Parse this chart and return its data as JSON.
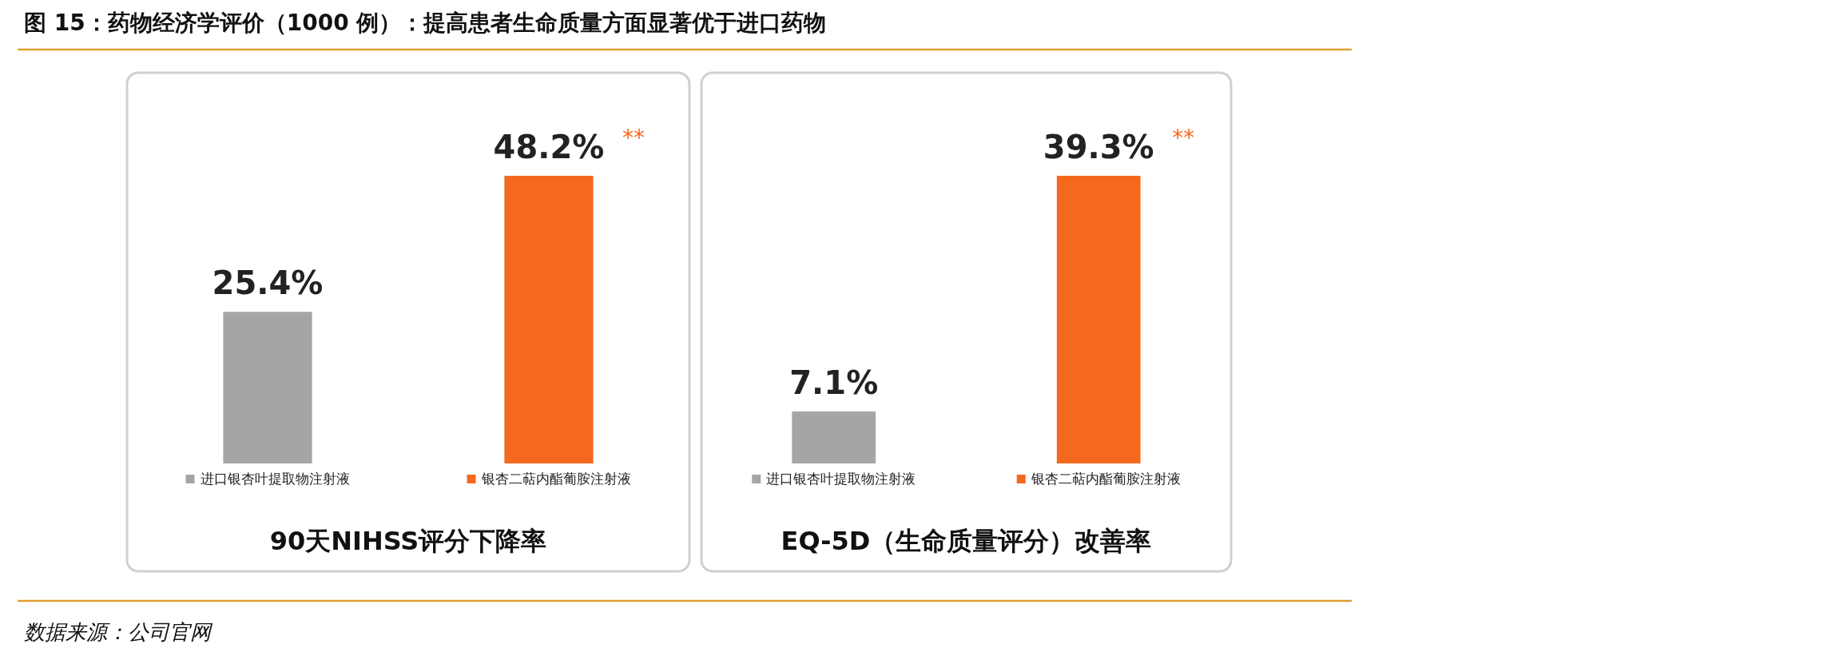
{
  "chart_data": [
    {
      "type": "bar",
      "title": "90天NIHSS评分下降率",
      "categories": [
        "进口银杏叶提取物注射液",
        "银杏二萜内酯葡胺注射液"
      ],
      "values": [
        25.4,
        48.2
      ],
      "colors": [
        "#a5a5a5",
        "#f4691e"
      ],
      "value_labels": [
        "25.4%",
        "48.2%"
      ],
      "annotations": [
        "图 15：药物经济学评价（1000 例）：提高患者生命质量方面显著优于进口药物",
        "**"
      ]
    },
    {
      "type": "bar",
      "title": "EQ-5D（生命质量评分）改善率",
      "categories": [
        "进口银杏叶提取物注射液",
        "银杏二萜内酯葡胺注射液"
      ],
      "values": [
        7.1,
        39.3
      ],
      "colors": [
        "#a5a5a5",
        "#f4691e"
      ],
      "value_labels": [
        "7.1%",
        "39.3%"
      ],
      "annotations": [
        "**",
        "数据来源：公司官网"
      ]
    }
  ]
}
